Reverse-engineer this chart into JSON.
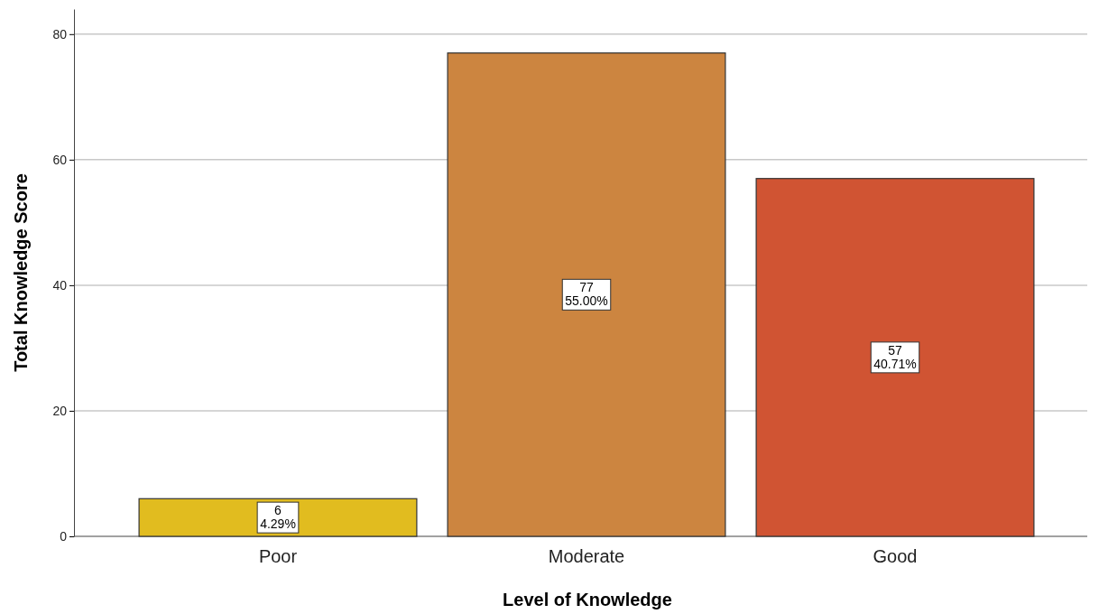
{
  "chart_data": {
    "type": "bar",
    "xlabel": "Level of Knowledge",
    "ylabel": "Total Knowledge Score",
    "categories": [
      "Poor",
      "Moderate",
      "Good"
    ],
    "values": [
      6,
      77,
      57
    ],
    "colors": [
      "#e1bc1f",
      "#cc8540",
      "#d05433"
    ],
    "value_labels": [
      "6\n4.29%",
      "77\n55.00%",
      "57\n40.71%"
    ],
    "ylim": [
      0,
      84
    ],
    "yticks": [
      0,
      20,
      40,
      60,
      80
    ],
    "grid": "y"
  }
}
